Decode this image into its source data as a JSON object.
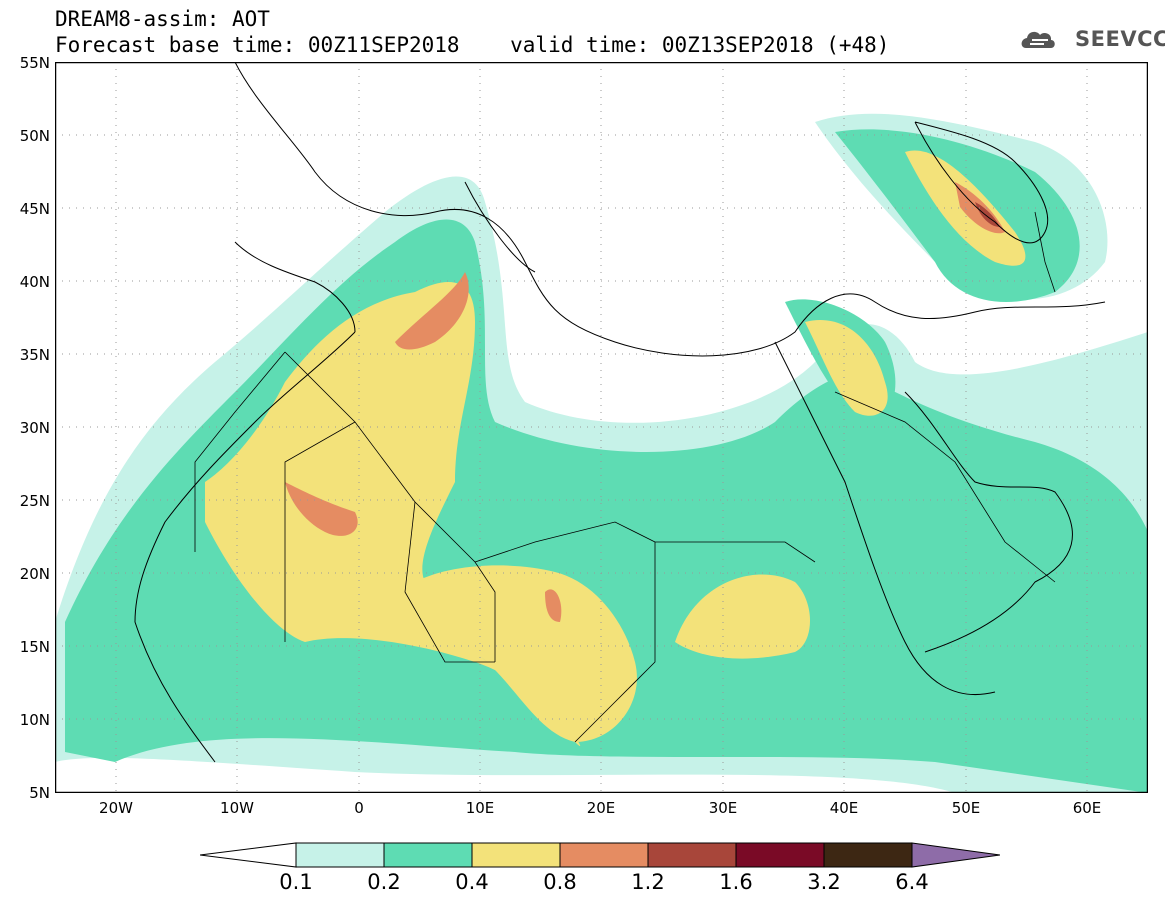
{
  "header": {
    "title_line1": "DREAM8-assim: AOT",
    "title_line2": "Forecast base time: 00Z11SEP2018    valid time: 00Z13SEP2018 (+48)",
    "logo_text": "SEEVCCC",
    "logo_icon": "cloud-icon"
  },
  "map": {
    "y_ticks": [
      "55N",
      "50N",
      "45N",
      "40N",
      "35N",
      "30N",
      "25N",
      "20N",
      "15N",
      "10N",
      "5N"
    ],
    "x_ticks": [
      "20W",
      "10W",
      "0",
      "10E",
      "20E",
      "30E",
      "40E",
      "50E",
      "60E"
    ],
    "lat_range": [
      5,
      55
    ],
    "lon_range": [
      -25,
      65
    ],
    "grid": "dotted"
  },
  "legend": {
    "labels": [
      "0.1",
      "0.2",
      "0.4",
      "0.8",
      "1.2",
      "1.6",
      "3.2",
      "6.4"
    ],
    "colors": [
      "#ffffff",
      "#c6f2e8",
      "#5edcb3",
      "#f3e27a",
      "#e58c62",
      "#a8463a",
      "#7a0a26",
      "#3d2713",
      "#8e6ca8"
    ]
  }
}
